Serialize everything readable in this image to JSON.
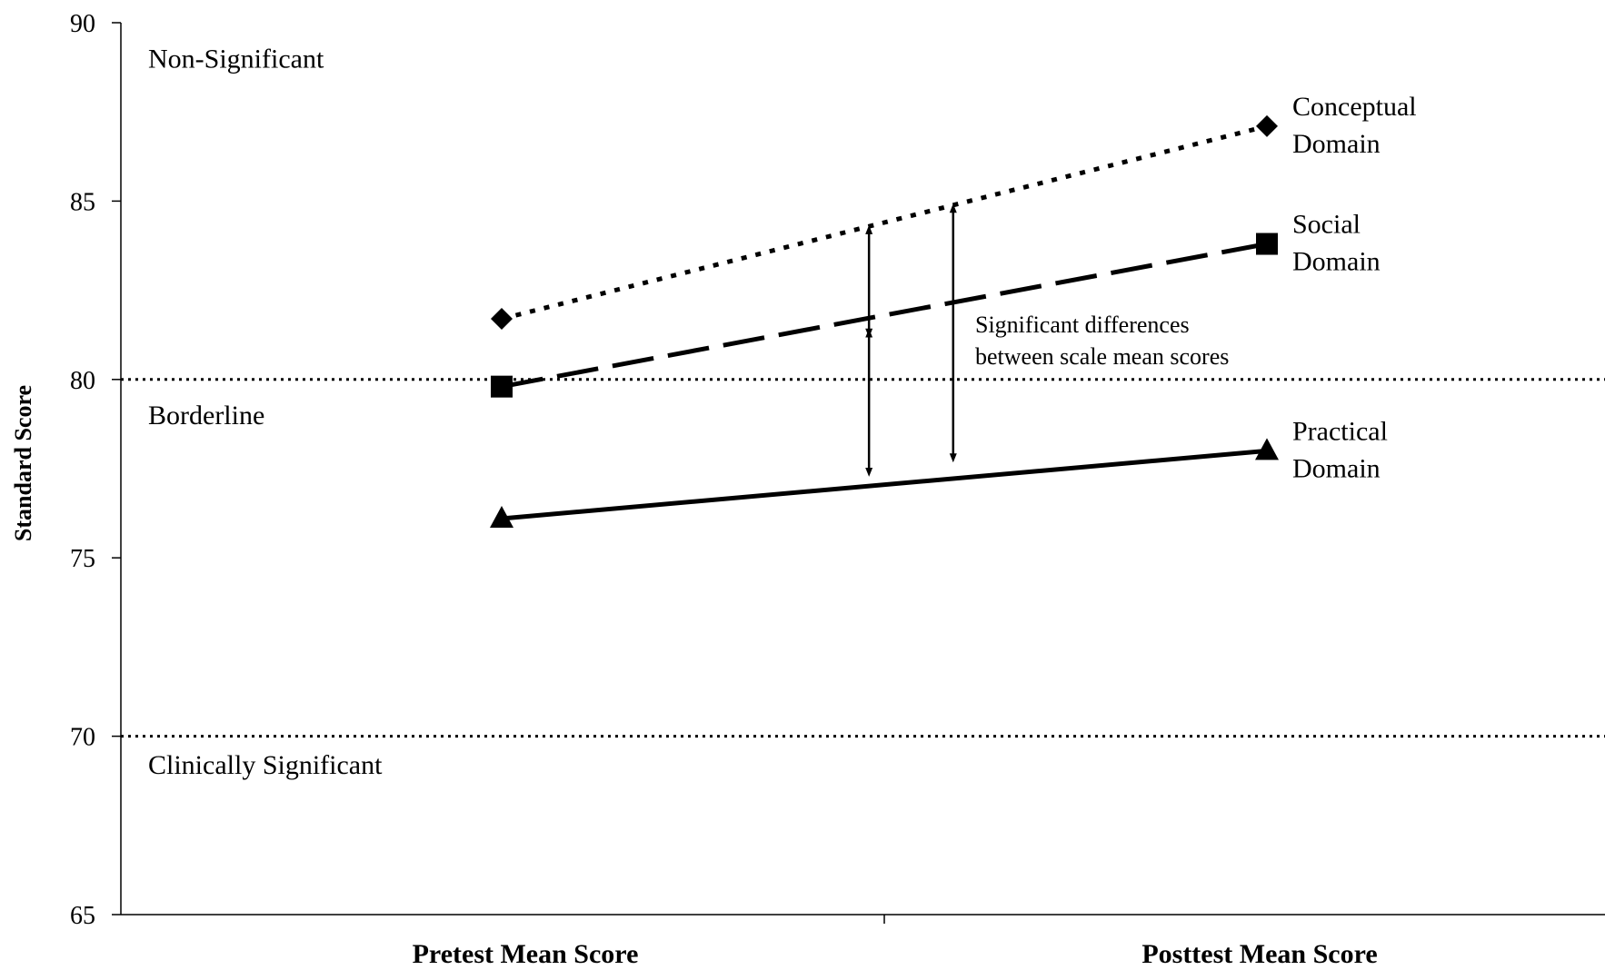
{
  "chart_data": {
    "type": "line",
    "categories": [
      "Pretest Mean Score",
      "Posttest Mean Score"
    ],
    "xlabel": "",
    "ylabel": "Standard Score",
    "ylim": [
      65,
      90
    ],
    "yticks": [
      65,
      70,
      75,
      80,
      85,
      90
    ],
    "grid": false,
    "series": [
      {
        "name_line1": "Conceptual",
        "name_line2": "Domain",
        "values": [
          81.7,
          87.1
        ],
        "marker": "diamond",
        "line_style": "dotted",
        "color": "#000000"
      },
      {
        "name_line1": "Social",
        "name_line2": "Domain",
        "values": [
          79.8,
          83.8
        ],
        "marker": "square",
        "line_style": "dashed",
        "color": "#000000"
      },
      {
        "name_line1": "Practical",
        "name_line2": "Domain",
        "values": [
          76.1,
          78.0
        ],
        "marker": "triangle",
        "line_style": "solid",
        "color": "#000000"
      }
    ],
    "reference_lines": [
      80,
      70
    ],
    "regions": [
      {
        "label": "Non-Significant",
        "y": 89
      },
      {
        "label": "Borderline",
        "y": 79
      },
      {
        "label": "Clinically Significant",
        "y": 69.2
      }
    ],
    "annotation": {
      "line1": "Significant differences",
      "line2": "between scale mean scores",
      "arrows": [
        {
          "x": 1.48,
          "y1": 81.3,
          "y2": 84.2
        },
        {
          "x": 1.48,
          "y1": 77.4,
          "y2": 81.3
        },
        {
          "x": 1.59,
          "y1": 77.8,
          "y2": 84.8
        }
      ]
    }
  }
}
